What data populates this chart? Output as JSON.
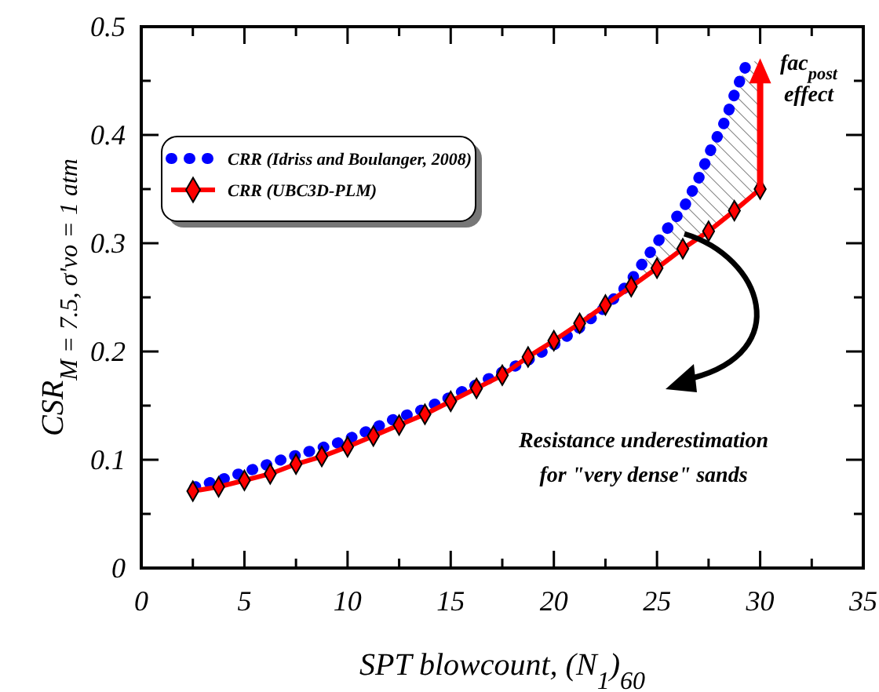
{
  "chart_data": {
    "type": "line",
    "xlabel": "SPT blowcount, (N$_{1}$)$_{60}$",
    "ylabel": "CSR$_{M = 7.5, σ'vo = 1 atm}$",
    "xlim": [
      0,
      35
    ],
    "ylim": [
      0,
      0.5
    ],
    "xticks": [
      0,
      {
        "value": 2.5,
        "label": null
      },
      5,
      {
        "value": 7.5,
        "label": null
      },
      10,
      {
        "value": 12.5,
        "label": null
      },
      15,
      {
        "value": 17.5,
        "label": null
      },
      20,
      {
        "value": 22.5,
        "label": null
      },
      25,
      {
        "value": 27.5,
        "label": null
      },
      30,
      {
        "value": 32.5,
        "label": null
      },
      35
    ],
    "yticks": [
      0,
      {
        "value": 0.05,
        "label": null
      },
      0.1,
      {
        "value": 0.15,
        "label": null
      },
      0.2,
      {
        "value": 0.25,
        "label": null
      },
      0.3,
      {
        "value": 0.35,
        "label": null
      },
      0.4,
      {
        "value": 0.45,
        "label": null
      },
      0.5
    ],
    "grid": false,
    "legend": "top left",
    "series": [
      {
        "name": "CRR (Idriss and Boulanger, 2008)",
        "color": "#0000ff",
        "line_style": "dotted",
        "marker": "none",
        "x": [
          2.6,
          4.1,
          5.4,
          6.8,
          8.2,
          9.6,
          10.9,
          12.2,
          13.6,
          15,
          16.2,
          17.5,
          18.75,
          20,
          21.25,
          22.5,
          23.6,
          24.5,
          25.4,
          26.3,
          27,
          27.6,
          28.3,
          28.8,
          29.4
        ],
        "values": [
          0.075,
          0.083,
          0.091,
          0.1,
          0.108,
          0.116,
          0.126,
          0.137,
          0.146,
          0.158,
          0.169,
          0.181,
          0.192,
          0.206,
          0.222,
          0.241,
          0.262,
          0.287,
          0.311,
          0.333,
          0.359,
          0.386,
          0.413,
          0.44,
          0.468
        ]
      },
      {
        "name": "CRR (UBC3D-PLM)",
        "color": "#ff0000",
        "line_style": "solid",
        "marker": "diamond",
        "x": [
          2.5,
          3.75,
          5,
          6.25,
          7.5,
          8.75,
          10,
          11.25,
          12.5,
          13.75,
          15,
          16.25,
          17.5,
          18.75,
          20,
          21.25,
          22.5,
          23.75,
          25,
          26.25,
          27.5,
          28.75,
          30
        ],
        "values": [
          0.071,
          0.075,
          0.081,
          0.087,
          0.096,
          0.103,
          0.112,
          0.122,
          0.132,
          0.142,
          0.154,
          0.166,
          0.178,
          0.195,
          0.21,
          0.226,
          0.243,
          0.26,
          0.277,
          0.295,
          0.311,
          0.33,
          0.35
        ]
      }
    ],
    "annotations": [
      {
        "text": "fac$_{post}$\neffect",
        "x": 30,
        "y": 0.35
      },
      "Resistance underestimation\nfor \"very dense\" sands"
    ]
  }
}
